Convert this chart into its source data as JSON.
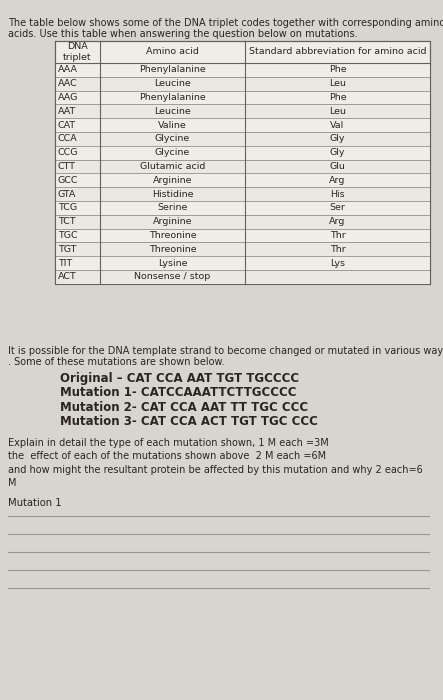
{
  "page_bg": "#d8d4cf",
  "content_bg": "#e8e5e0",
  "intro_text_line1": "The table below shows some of the DNA triplet codes together with corresponding amino",
  "intro_text_line2": "acids. Use this table when answering the question below on mutations.",
  "table_headers": [
    "DNA\ntriplet",
    "Amino acid",
    "Standard abbreviation for amino acid"
  ],
  "table_rows": [
    [
      "AAA",
      "Phenylalanine",
      "Phe"
    ],
    [
      "AAC",
      "Leucine",
      "Leu"
    ],
    [
      "AAG",
      "Phenylalanine",
      "Phe"
    ],
    [
      "AAT",
      "Leucine",
      "Leu"
    ],
    [
      "CAT",
      "Valine",
      "Val"
    ],
    [
      "CCA",
      "Glycine",
      "Gly"
    ],
    [
      "CCG",
      "Glycine",
      "Gly"
    ],
    [
      "CTT",
      "Glutamic acid",
      "Glu"
    ],
    [
      "GCC",
      "Arginine",
      "Arg"
    ],
    [
      "GTA",
      "Histidine",
      "His"
    ],
    [
      "TCG",
      "Serine",
      "Ser"
    ],
    [
      "TCT",
      "Arginine",
      "Arg"
    ],
    [
      "TGC",
      "Threonine",
      "Thr"
    ],
    [
      "TGT",
      "Threonine",
      "Thr"
    ],
    [
      "TIT",
      "Lysine",
      "Lys"
    ],
    [
      "ACT",
      "Nonsense / stop",
      ""
    ]
  ],
  "paragraph1_line1": "It is possible for the DNA template strand to become changed or mutated in various ways",
  "paragraph1_line2": ". Some of these mutations are shown below.",
  "mutations": [
    "Original – CAT CCA AAT TGT TGCCCC",
    "Mutation 1- CATCCAAATTCTTGCCCC",
    "Mutation 2- CAT CCA AAT TT TGC CCC",
    "Mutation 3- CAT CCA ACT TGT TGC CCC"
  ],
  "q_line1": "Explain in detail the type of each mutation shown, 1 M each =3M",
  "q_line2": "the  effect of each of the mutations shown above  2 M each =6M",
  "q_line3": "and how might the resultant protein be affected by this mutation and why 2 each=6",
  "q_line4": "M",
  "mutation1_label": "Mutation 1",
  "num_lines": 5,
  "text_color": "#2a2520",
  "table_border_color": "#666055",
  "table_fill": "#f0ede8",
  "line_color": "#999590"
}
